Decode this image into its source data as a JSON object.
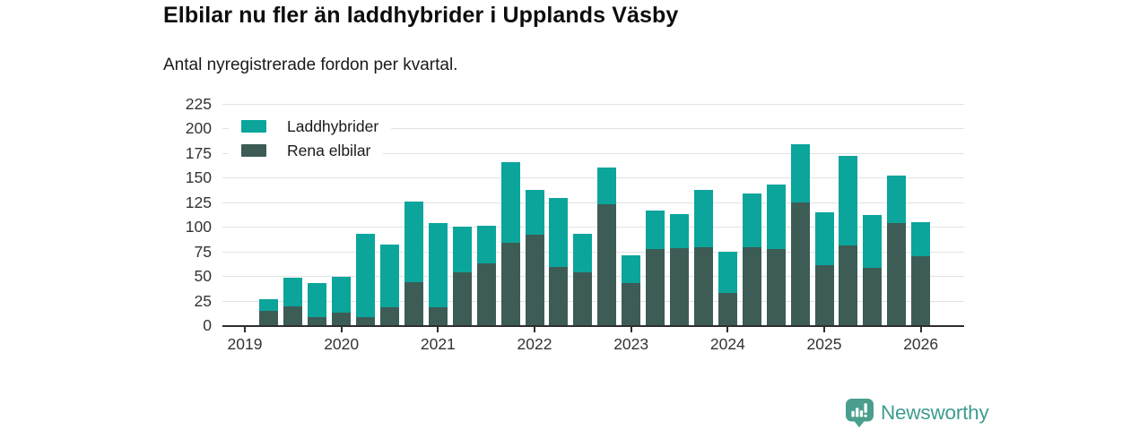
{
  "chart_data": {
    "type": "bar",
    "stacked": true,
    "title": "Elbilar nu fler än laddhybrider i Upplands Väsby",
    "subtitle": "Antal nyregistrerade fordon per kvartal.",
    "categories": [
      "2019 Q1",
      "2019 Q2",
      "2019 Q3",
      "2019 Q4",
      "2020 Q1",
      "2020 Q2",
      "2020 Q3",
      "2020 Q4",
      "2021 Q1",
      "2021 Q2",
      "2021 Q3",
      "2021 Q4",
      "2022 Q1",
      "2022 Q2",
      "2022 Q3",
      "2022 Q4",
      "2023 Q1",
      "2023 Q2",
      "2023 Q3",
      "2023 Q4",
      "2024 Q1",
      "2024 Q2",
      "2024 Q3",
      "2024 Q4",
      "2025 Q1",
      "2025 Q2",
      "2025 Q3",
      "2025 Q4",
      "2026 Q1"
    ],
    "series": [
      {
        "name": "Laddhybrider",
        "color": "#0ba59c",
        "stack_position": "top",
        "values": [
          0,
          11,
          29,
          35,
          36,
          85,
          64,
          82,
          86,
          46,
          38,
          82,
          46,
          70,
          39,
          37,
          28,
          40,
          35,
          59,
          42,
          55,
          66,
          59,
          54,
          91,
          54,
          48,
          35
        ]
      },
      {
        "name": "Rena elbilar",
        "color": "#3d5c56",
        "stack_position": "bottom",
        "values": [
          0,
          15,
          19,
          8,
          13,
          8,
          18,
          44,
          18,
          54,
          63,
          84,
          92,
          59,
          54,
          123,
          43,
          77,
          78,
          79,
          33,
          79,
          77,
          125,
          61,
          81,
          58,
          104,
          70
        ]
      }
    ],
    "ylim": [
      0,
      225
    ],
    "yticks": [
      0,
      25,
      50,
      75,
      100,
      125,
      150,
      175,
      200,
      225
    ],
    "xticks": [
      "2019",
      "2020",
      "2021",
      "2022",
      "2023",
      "2024",
      "2025",
      "2026"
    ],
    "grid": true,
    "legend_position": "top-left"
  },
  "axis": {
    "grid_color": "#e2e2e2",
    "axis_color": "#2e2e2e",
    "label_color": "#333333"
  },
  "branding": {
    "logo_text": "Newsworthy",
    "icon_color": "#4a9e8e",
    "text_color": "#3f9c90"
  }
}
